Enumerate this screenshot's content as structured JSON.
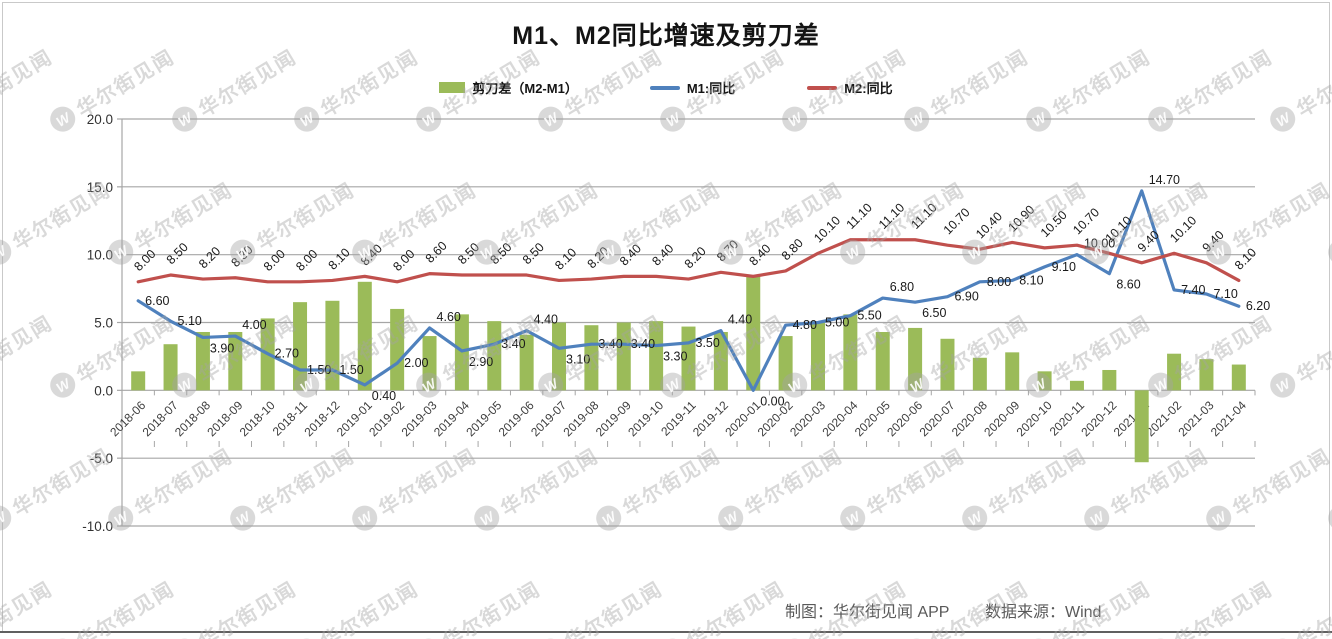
{
  "title": "M1、M2同比增速及剪刀差",
  "legend": {
    "items": [
      {
        "label": "剪刀差（M2-M1）",
        "type": "bar",
        "color": "#9BBB59"
      },
      {
        "label": "M1:同比",
        "type": "line",
        "color": "#4F81BD"
      },
      {
        "label": "M2:同比",
        "type": "line",
        "color": "#C0504D"
      }
    ]
  },
  "footer": {
    "credit": "制图：华尔街见闻 APP",
    "source": "数据来源：Wind"
  },
  "watermark": {
    "logo_letter": "W",
    "text": "华尔街见闻"
  },
  "chart_data": {
    "type": "combo",
    "title": "M1、M2同比增速及剪刀差",
    "categories": [
      "2018-06",
      "2018-07",
      "2018-08",
      "2018-09",
      "2018-10",
      "2018-11",
      "2018-12",
      "2019-01",
      "2019-02",
      "2019-03",
      "2019-04",
      "2019-05",
      "2019-06",
      "2019-07",
      "2019-08",
      "2019-09",
      "2019-10",
      "2019-11",
      "2019-12",
      "2020-01",
      "2020-02",
      "2020-03",
      "2020-04",
      "2020-05",
      "2020-06",
      "2020-07",
      "2020-08",
      "2020-09",
      "2020-10",
      "2020-11",
      "2020-12",
      "2021-01",
      "2021-02",
      "2021-03",
      "2021-04"
    ],
    "series": [
      {
        "name": "剪刀差（M2-M1）",
        "chart_type": "bar",
        "color": "#9BBB59",
        "data_labels": false,
        "values": [
          1.4,
          3.4,
          4.3,
          4.3,
          5.3,
          6.5,
          6.6,
          8.0,
          6.0,
          4.0,
          5.6,
          5.1,
          4.1,
          5.0,
          4.8,
          5.0,
          5.1,
          4.7,
          4.3,
          8.4,
          4.0,
          5.1,
          5.6,
          4.3,
          4.6,
          3.8,
          2.4,
          2.8,
          1.4,
          0.7,
          1.5,
          -5.3,
          2.7,
          2.3,
          1.9
        ]
      },
      {
        "name": "M1:同比",
        "chart_type": "line",
        "color": "#4F81BD",
        "data_labels": true,
        "label_rotation": 0,
        "values": [
          6.6,
          5.1,
          3.9,
          4.0,
          2.7,
          1.5,
          1.5,
          0.4,
          2.0,
          4.6,
          2.9,
          3.4,
          4.4,
          3.1,
          3.4,
          3.4,
          3.3,
          3.5,
          4.4,
          0.0,
          4.8,
          5.0,
          5.5,
          6.8,
          6.5,
          6.9,
          8.0,
          8.1,
          9.1,
          10.0,
          8.6,
          14.7,
          7.4,
          7.1,
          6.2
        ]
      },
      {
        "name": "M2:同比",
        "chart_type": "line",
        "color": "#C0504D",
        "data_labels": true,
        "label_rotation": -45,
        "values": [
          8.0,
          8.5,
          8.2,
          8.3,
          8.0,
          8.0,
          8.1,
          8.4,
          8.0,
          8.6,
          8.5,
          8.5,
          8.5,
          8.1,
          8.2,
          8.4,
          8.4,
          8.2,
          8.7,
          8.4,
          8.8,
          10.1,
          11.1,
          11.1,
          11.1,
          10.7,
          10.4,
          10.9,
          10.5,
          10.7,
          10.1,
          9.4,
          10.1,
          9.4,
          8.1
        ]
      }
    ],
    "ylim": [
      -10,
      20
    ],
    "ytick_step": 5,
    "ytick_labels": [
      "20.0",
      "15.0",
      "10.0",
      "5.0",
      "0.0",
      "-5.0",
      "-10.0"
    ],
    "label_format": "2dp",
    "grid": true,
    "legend_position": "top",
    "gridline_color": "#a6a6a6",
    "text_color": "#3d3d3d"
  }
}
